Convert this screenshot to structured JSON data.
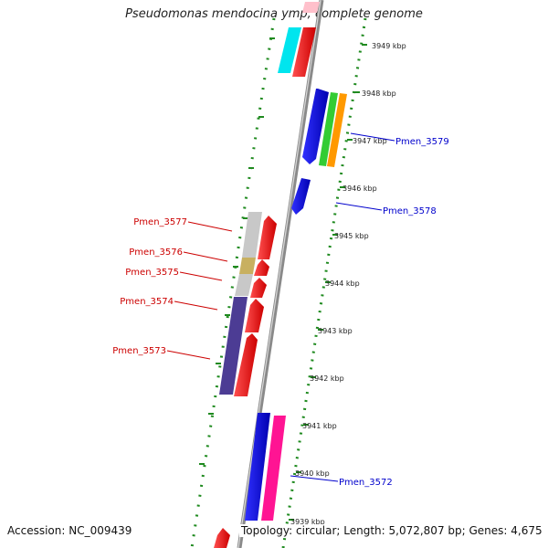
{
  "title": "Pseudomonas mendocina ymp, complete genome",
  "footer": {
    "accession": "Accession: NC_009439",
    "topology": "Topology: circular; Length: 5,072,807 bp; Genes: 4,675"
  },
  "ruler_ticks": [
    {
      "label": "3949 kbp",
      "kbp": 3949
    },
    {
      "label": "3948 kbp",
      "kbp": 3948
    },
    {
      "label": "3947 kbp",
      "kbp": 3947
    },
    {
      "label": "3946 kbp",
      "kbp": 3946
    },
    {
      "label": "3945 kbp",
      "kbp": 3945
    },
    {
      "label": "3944 kbp",
      "kbp": 3944
    },
    {
      "label": "3943 kbp",
      "kbp": 3943
    },
    {
      "label": "3942 kbp",
      "kbp": 3942
    },
    {
      "label": "3941 kbp",
      "kbp": 3941
    },
    {
      "label": "3940 kbp",
      "kbp": 3940
    },
    {
      "label": "3939 kbp",
      "kbp": 3939
    }
  ],
  "gene_labels": [
    {
      "name": "Pmen_3579",
      "color": "#0000cc"
    },
    {
      "name": "Pmen_3578",
      "color": "#0000cc"
    },
    {
      "name": "Pmen_3577",
      "color": "#cc0000"
    },
    {
      "name": "Pmen_3576",
      "color": "#cc0000"
    },
    {
      "name": "Pmen_3575",
      "color": "#cc0000"
    },
    {
      "name": "Pmen_3574",
      "color": "#cc0000"
    },
    {
      "name": "Pmen_3573",
      "color": "#cc0000"
    },
    {
      "name": "Pmen_3572",
      "color": "#0000cc"
    }
  ],
  "colors": {
    "backbone": "#8a8a8a",
    "ruler_dots": "#1f8a1f",
    "strand_forward": "#ff0000",
    "strand_reverse": "#0000ee",
    "cyan": "#00e5ee",
    "green": "#33cc33",
    "orange": "#ff9900",
    "gray": "#c8c8c8",
    "olive": "#c8b060",
    "purple": "#4c3c94",
    "pink": "#ff1493"
  }
}
